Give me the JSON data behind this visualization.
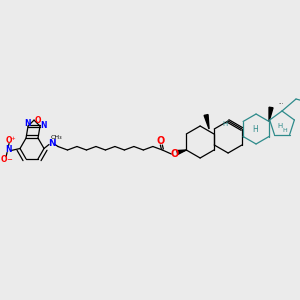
{
  "background_color": "#ebebeb",
  "figsize": [
    3.0,
    3.0
  ],
  "dpi": 100,
  "colors": {
    "black": "#000000",
    "blue": "#0000FF",
    "red": "#FF0000",
    "teal": "#2E8B8B",
    "orange_red": "#CC0000"
  },
  "layout": {
    "xlim": [
      0,
      300
    ],
    "ylim": [
      0,
      300
    ]
  }
}
